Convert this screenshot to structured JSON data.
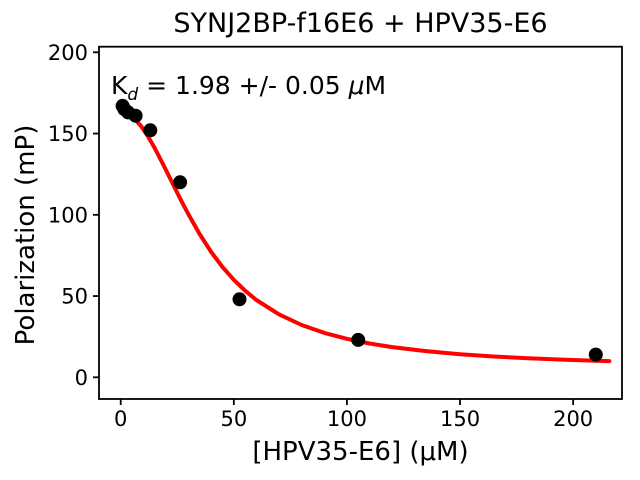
{
  "chart_data": {
    "type": "scatter",
    "title": "SYNJ2BP-f16E6 + HPV35-E6",
    "xlabel": "[HPV35-E6] (μM)",
    "ylabel": "Polarization (mP)",
    "annotation": {
      "prefix": "K",
      "sub": "d",
      "body": " = 1.98 +/- 0.05 ",
      "mu": "μ",
      "unit": "M",
      "plain_text": "Kd = 1.98 +/- 0.05 μM"
    },
    "xlim": [
      -9.6,
      221.6
    ],
    "ylim": [
      -13.35,
      203.45
    ],
    "xticks": [
      0,
      50,
      100,
      150,
      200
    ],
    "yticks": [
      0,
      50,
      100,
      150,
      200
    ],
    "grid": false,
    "legend": "none",
    "marker_color": "#000000",
    "fit_color": "#ff0000",
    "points": {
      "x": [
        0.82,
        1.64,
        3.28,
        6.56,
        13.1,
        26.25,
        52.5,
        105,
        210
      ],
      "y": [
        167,
        165,
        163,
        161,
        152,
        120,
        48,
        23,
        14
      ]
    },
    "fit_curve": {
      "x": [
        0,
        3,
        6,
        9,
        12,
        15,
        18,
        21,
        24,
        27,
        30,
        35,
        40,
        45,
        50,
        55,
        60,
        70,
        80,
        90,
        100,
        110,
        120,
        135,
        150,
        165,
        180,
        195,
        210,
        216
      ],
      "y": [
        163,
        162.1,
        159.2,
        154.6,
        148.4,
        141.2,
        133.1,
        124.8,
        116.3,
        108,
        100.1,
        87.9,
        77.1,
        67.9,
        60,
        53.3,
        47.6,
        38.7,
        32.2,
        27.3,
        23.7,
        20.8,
        18.6,
        16.1,
        14.2,
        12.8,
        11.7,
        10.9,
        10.2,
        10
      ]
    }
  }
}
